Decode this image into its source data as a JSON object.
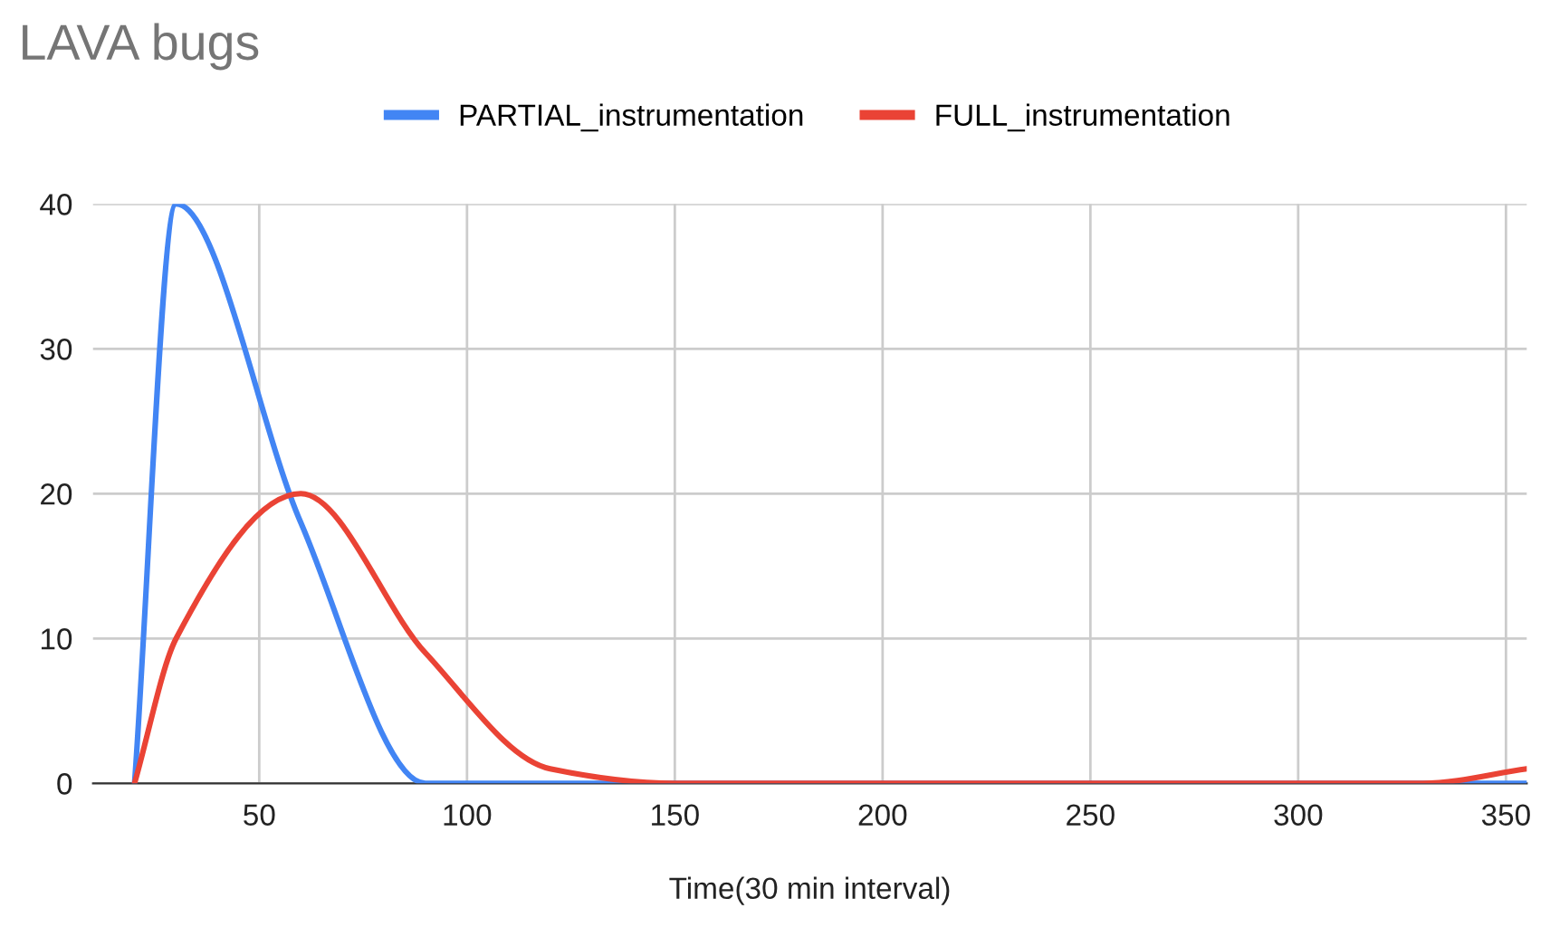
{
  "chart_data": {
    "type": "line",
    "title": "LAVA bugs",
    "xlabel": "Time(30 min interval)",
    "x": [
      20,
      30,
      60,
      90,
      120,
      150,
      180,
      210,
      240,
      270,
      300,
      330,
      355
    ],
    "series": [
      {
        "name": "PARTIAL_instrumentation",
        "color": "#4285f4",
        "values": [
          0,
          40,
          18,
          0,
          0,
          0,
          0,
          0,
          0,
          0,
          0,
          0,
          0
        ]
      },
      {
        "name": "FULL_instrumentation",
        "color": "#ea4335",
        "values": [
          0,
          10,
          20,
          9,
          1,
          0,
          0,
          0,
          0,
          0,
          0,
          0,
          1
        ]
      }
    ],
    "xlim": [
      10,
      355
    ],
    "xticks": [
      50,
      100,
      150,
      200,
      250,
      300,
      350
    ],
    "ylim": [
      0,
      40
    ],
    "yticks": [
      0,
      10,
      20,
      30,
      40
    ],
    "grid": true,
    "legend": "top",
    "marker": "none",
    "line_style": "solid"
  }
}
